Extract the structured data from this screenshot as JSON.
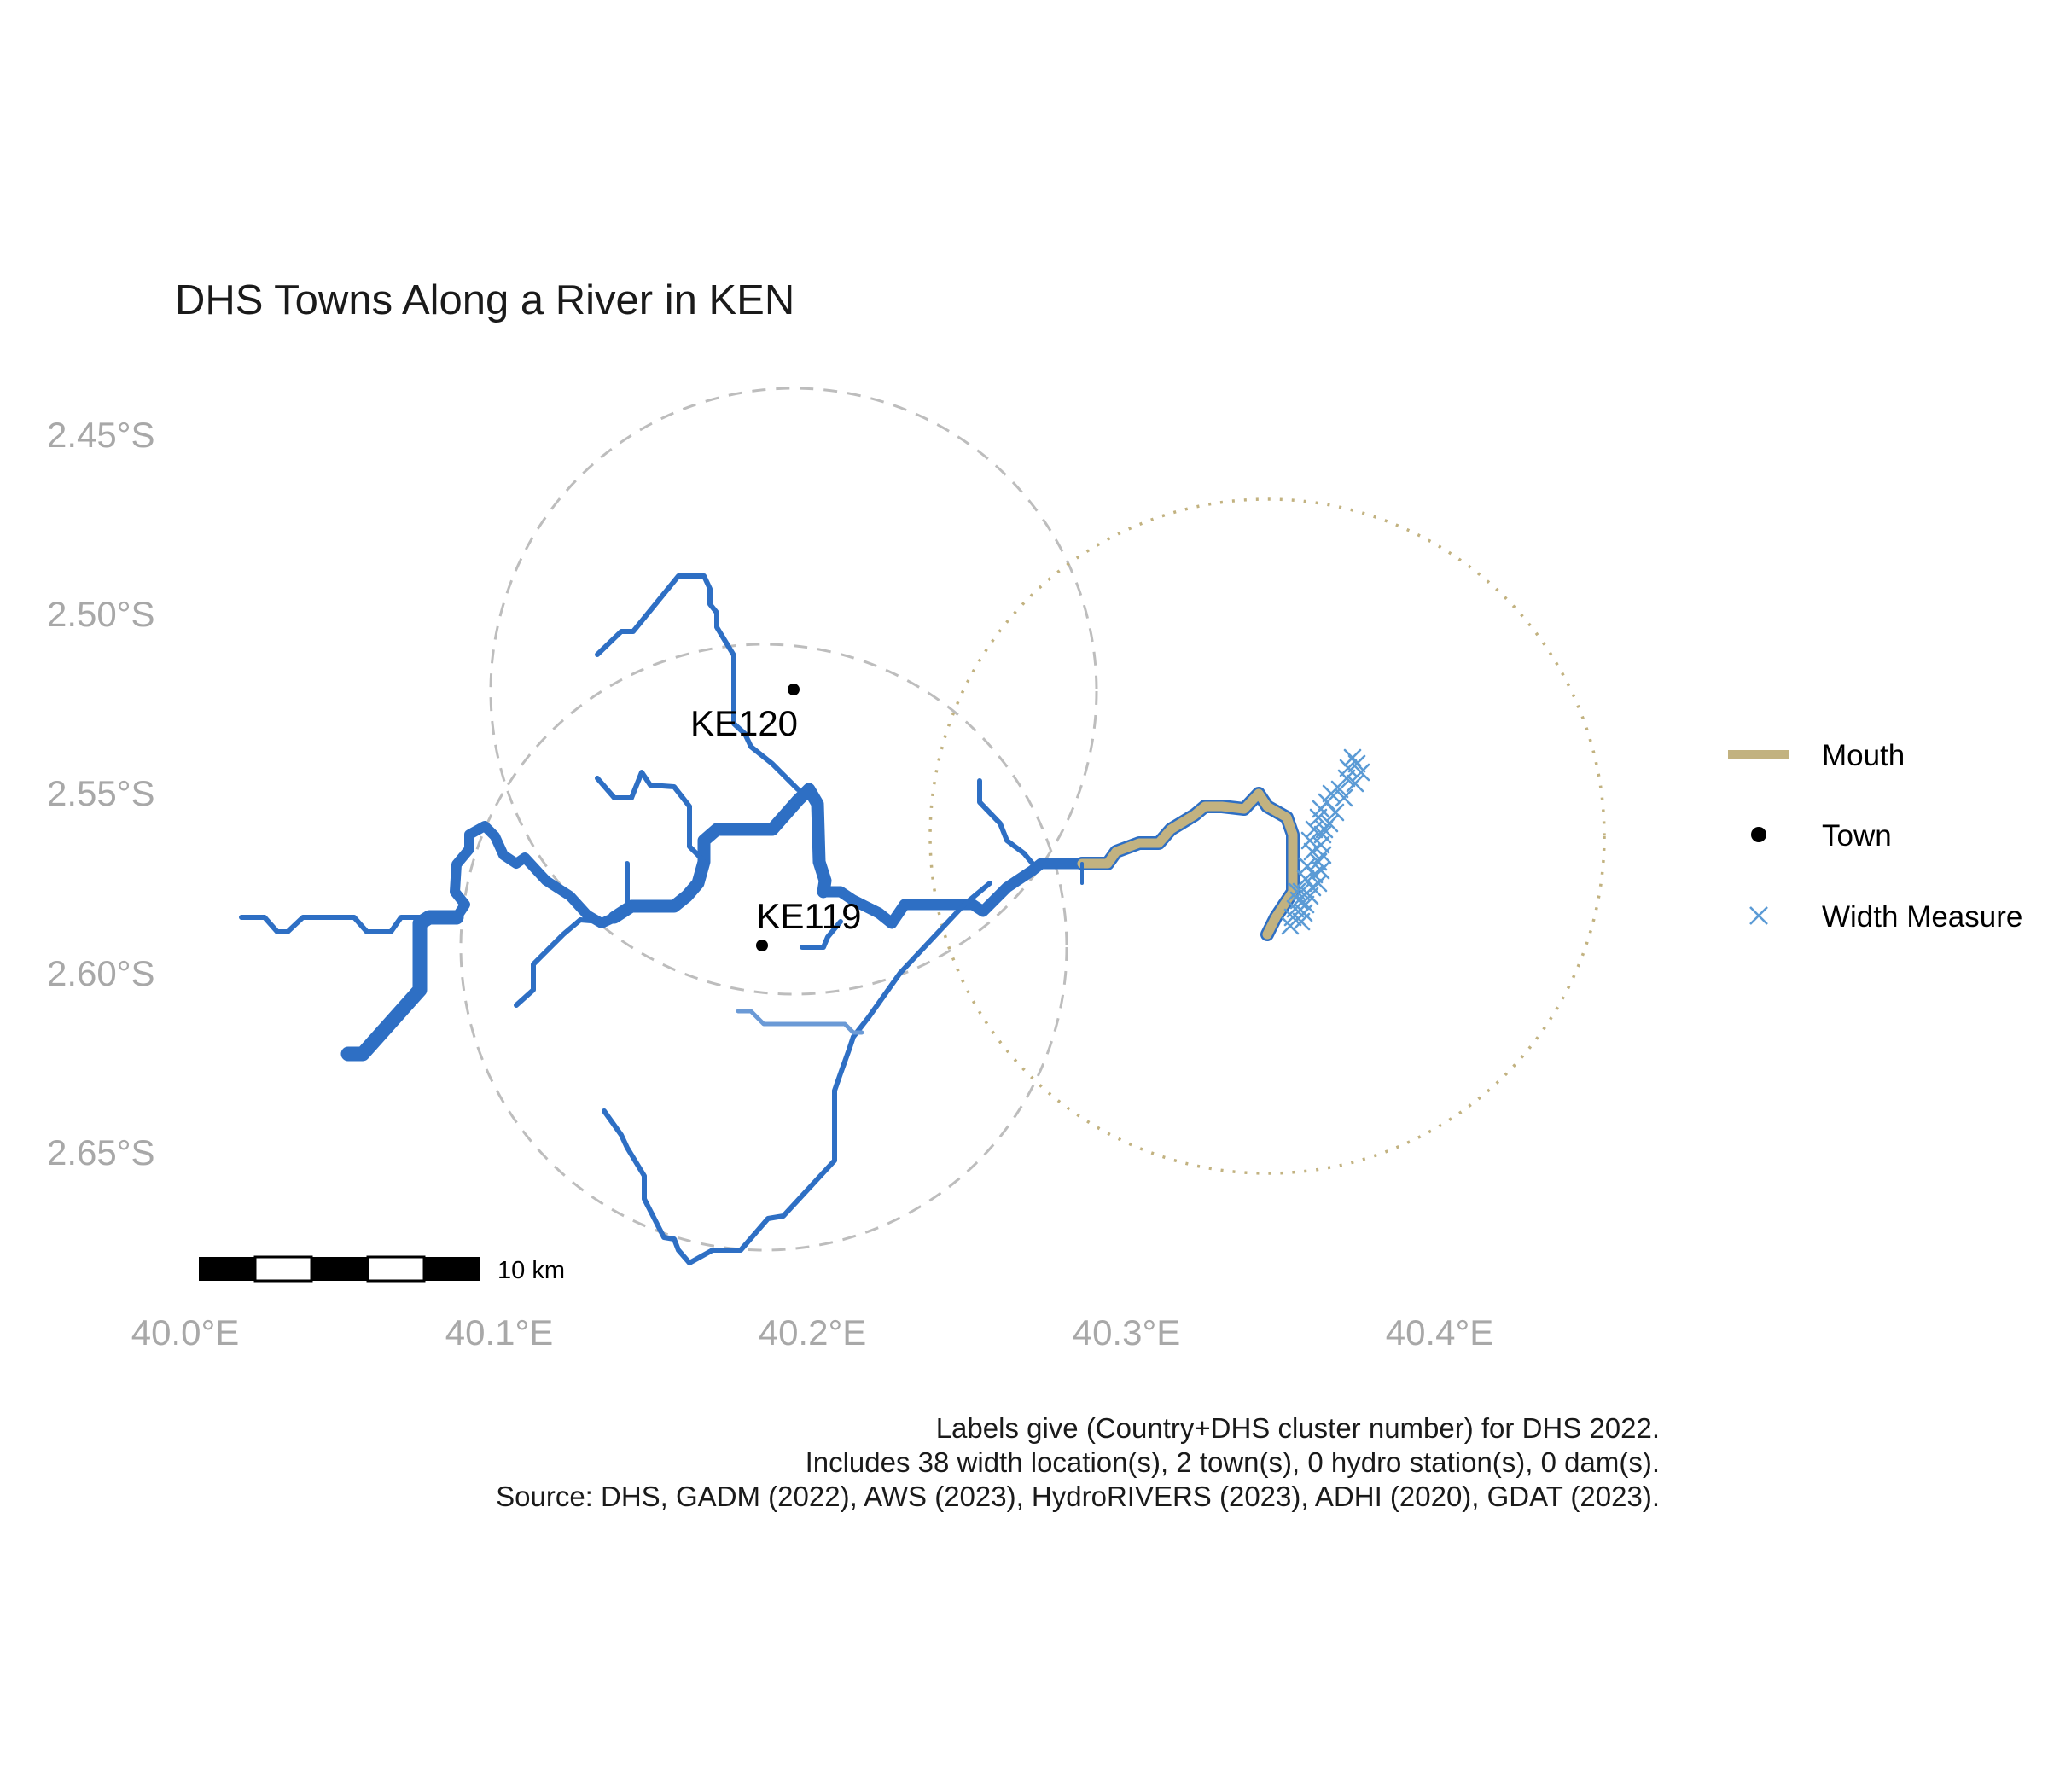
{
  "title": "DHS Towns Along a River in KEN",
  "axes": {
    "x_ticks": [
      "40.0°E",
      "40.1°E",
      "40.2°E",
      "40.3°E",
      "40.4°E"
    ],
    "y_ticks": [
      "2.45°S",
      "2.50°S",
      "2.55°S",
      "2.60°S",
      "2.65°S"
    ]
  },
  "towns": [
    {
      "label": "KE120",
      "lon": 40.195,
      "lat": -2.522
    },
    {
      "label": "KE119",
      "lon": 40.185,
      "lat": -2.593
    }
  ],
  "legend": {
    "items": [
      {
        "label": "Mouth",
        "symbol": "line",
        "color": "#c2b280"
      },
      {
        "label": "Town",
        "symbol": "dot",
        "color": "#000000"
      },
      {
        "label": "Width Measure",
        "symbol": "cross",
        "color": "#5b9bd5"
      }
    ]
  },
  "scale_bar": {
    "label": "10 km"
  },
  "caption": [
    "Labels give (Country+DHS cluster number) for DHS 2022.",
    "Includes 38 width location(s), 2 town(s), 0 hydro station(s), 0 dam(s).",
    "Source: DHS, GADM (2022), AWS (2023), HydroRIVERS (2023), ADHI (2020), GDAT (2023)."
  ],
  "colors": {
    "river": "#2e6fc4",
    "river_light": "#6b9ad6",
    "mouth": "#c2b280",
    "buffer_circle": "#bdbdbd",
    "mouth_circle": "#c2b280",
    "width_marker": "#5b9bd5"
  }
}
